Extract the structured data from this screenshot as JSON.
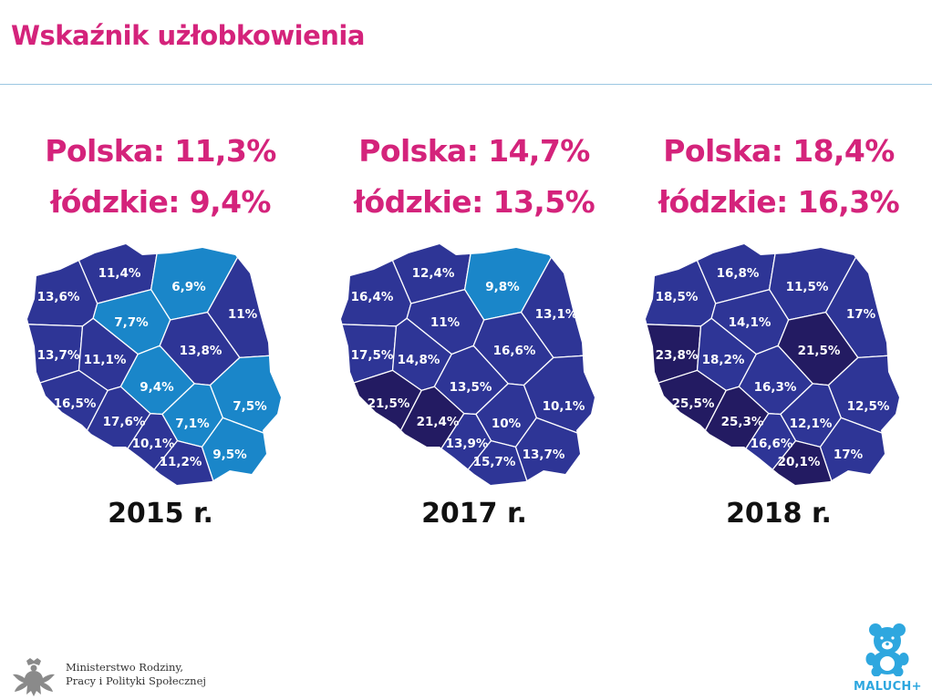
{
  "title": "Wskaźnik użłobkowienia",
  "colors": {
    "accent": "#d4237b",
    "low": "#1a86c9",
    "mid": "#2e3596",
    "high": "#231b62",
    "borders": "#ffffff",
    "year_text": "#111111",
    "logo_blue": "#2ea7df"
  },
  "legend_thresholds": {
    "low_below": 10,
    "high_at_or_above": 19
  },
  "panels": [
    {
      "polska": "Polska: 11,3%",
      "lodzkie": "łódzkie: 9,4%",
      "year": "2015 r.",
      "regions": {
        "pomorskie": "11,4%",
        "warminsko_mazurskie": "6,9%",
        "zachodniopomorskie": "13,6%",
        "kujawsko_pomorskie": "7,7%",
        "podlaskie": "11%",
        "lubuskie": "13,7%",
        "wielkopolskie": "11,1%",
        "mazowieckie": "13,8%",
        "lodzkie": "9,4%",
        "lubelskie": "7,5%",
        "dolnoslaskie": "16,5%",
        "opolskie": "17,6%",
        "swietokrzyskie": "7,1%",
        "slaskie": "10,1%",
        "malopolskie": "11,2%",
        "podkarpackie": "9,5%"
      }
    },
    {
      "polska": "Polska: 14,7%",
      "lodzkie": "łódzkie: 13,5%",
      "year": "2017 r.",
      "regions": {
        "pomorskie": "12,4%",
        "warminsko_mazurskie": "9,8%",
        "zachodniopomorskie": "16,4%",
        "kujawsko_pomorskie": "11%",
        "podlaskie": "13,1%",
        "lubuskie": "17,5%",
        "wielkopolskie": "14,8%",
        "mazowieckie": "16,6%",
        "lodzkie": "13,5%",
        "lubelskie": "10,1%",
        "dolnoslaskie": "21,5%",
        "opolskie": "21,4%",
        "swietokrzyskie": "10%",
        "slaskie": "13,9%",
        "malopolskie": "15,7%",
        "podkarpackie": "13,7%"
      }
    },
    {
      "polska": "Polska: 18,4%",
      "lodzkie": "łódzkie: 16,3%",
      "year": "2018 r.",
      "regions": {
        "pomorskie": "16,8%",
        "warminsko_mazurskie": "11,5%",
        "zachodniopomorskie": "18,5%",
        "kujawsko_pomorskie": "14,1%",
        "podlaskie": "17%",
        "lubuskie": "23,8%",
        "wielkopolskie": "18,2%",
        "mazowieckie": "21,5%",
        "lodzkie": "16,3%",
        "lubelskie": "12,5%",
        "dolnoslaskie": "25,5%",
        "opolskie": "25,3%",
        "swietokrzyskie": "12,1%",
        "slaskie": "16,6%",
        "malopolskie": "20,1%",
        "podkarpackie": "17%"
      }
    }
  ],
  "footer": {
    "ministry_line1": "Ministerstwo Rodziny,",
    "ministry_line2": "Pracy i Polityki Społecznej",
    "ministry_icon": "polish-eagle-emblem",
    "program_name": "MALUCH+",
    "program_icon": "teddy-bear-icon"
  }
}
